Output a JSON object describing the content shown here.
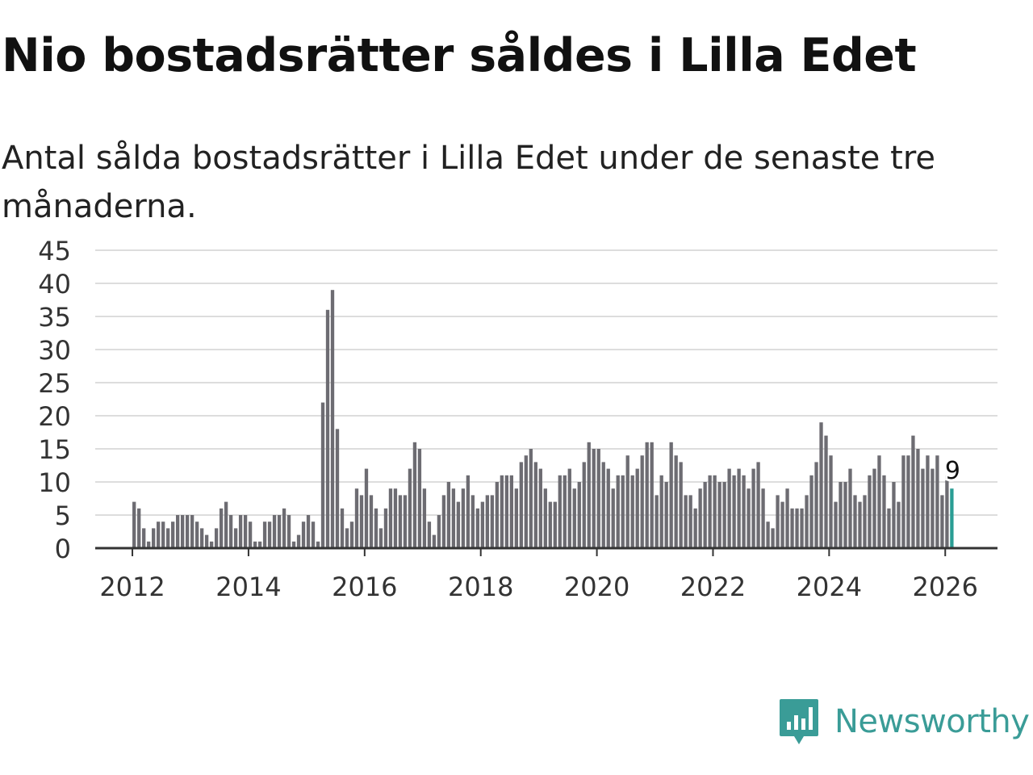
{
  "title": "Nio bostadsrätter såldes i Lilla Edet",
  "subtitle": "Antal sålda bostadsrätter i Lilla Edet under de senaste tre månaderna.",
  "brand": {
    "name": "Newsworthy",
    "color": "#3a9c97"
  },
  "colors": {
    "bar": "#6d6c72",
    "highlight": "#2a9d94",
    "grid": "#dddddd",
    "axis": "#333333",
    "text": "#333333"
  },
  "chart_data": {
    "type": "bar",
    "title": "Nio bostadsrätter såldes i Lilla Edet",
    "xlabel": "",
    "ylabel": "",
    "ylim": [
      0,
      45
    ],
    "yticks": [
      0,
      5,
      10,
      15,
      20,
      25,
      30,
      35,
      40,
      45
    ],
    "xticks": [
      "2012",
      "2014",
      "2016",
      "2018",
      "2020",
      "2022",
      "2024",
      "2026"
    ],
    "xrange_years": [
      2011.36,
      2026.9
    ],
    "start": "2012-01",
    "grid": true,
    "legend": "none",
    "values": [
      7,
      6,
      3,
      1,
      3,
      4,
      4,
      3,
      4,
      5,
      5,
      5,
      5,
      4,
      3,
      2,
      1,
      3,
      6,
      7,
      5,
      3,
      5,
      5,
      4,
      1,
      1,
      4,
      4,
      5,
      5,
      6,
      5,
      1,
      2,
      4,
      5,
      4,
      1,
      22,
      36,
      39,
      18,
      6,
      3,
      4,
      9,
      8,
      12,
      8,
      6,
      3,
      6,
      9,
      9,
      8,
      8,
      12,
      16,
      15,
      9,
      4,
      2,
      5,
      8,
      10,
      9,
      7,
      9,
      11,
      8,
      6,
      7,
      8,
      8,
      10,
      11,
      11,
      11,
      9,
      13,
      14,
      15,
      13,
      12,
      9,
      7,
      7,
      11,
      11,
      12,
      9,
      10,
      13,
      16,
      15,
      15,
      13,
      12,
      9,
      11,
      11,
      14,
      11,
      12,
      14,
      16,
      16,
      8,
      11,
      10,
      16,
      14,
      13,
      8,
      8,
      6,
      9,
      10,
      11,
      11,
      10,
      10,
      12,
      11,
      12,
      11,
      9,
      12,
      13,
      9,
      4,
      3,
      8,
      7,
      9,
      6,
      6,
      6,
      8,
      11,
      13,
      19,
      17,
      14,
      7,
      10,
      10,
      12,
      8,
      7,
      8,
      11,
      12,
      14,
      11,
      6,
      10,
      7,
      14,
      14,
      17,
      15,
      12,
      14,
      12,
      14,
      8,
      11,
      9
    ],
    "last_value_label": "9"
  }
}
